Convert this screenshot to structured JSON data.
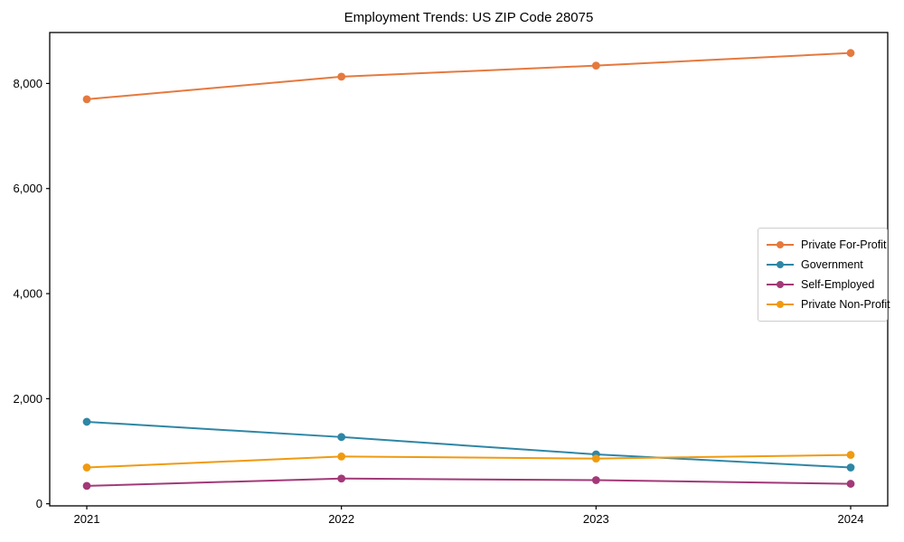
{
  "figure": {
    "background": "#ffffff",
    "axis_color": "#000000"
  },
  "chart_data": {
    "type": "line",
    "title": "Employment Trends: US ZIP Code 28075",
    "categories": [
      "2021",
      "2022",
      "2023",
      "2024"
    ],
    "series": [
      {
        "name": "Private For-Profit",
        "color": "#e5793e",
        "values": [
          7700,
          8130,
          8340,
          8580
        ]
      },
      {
        "name": "Government",
        "color": "#2e86a5",
        "values": [
          1560,
          1270,
          940,
          690
        ]
      },
      {
        "name": "Self-Employed",
        "color": "#a23978",
        "values": [
          340,
          480,
          450,
          380
        ]
      },
      {
        "name": "Private Non-Profit",
        "color": "#f09a10",
        "values": [
          690,
          900,
          860,
          930
        ]
      }
    ],
    "xlabel": "",
    "ylabel": "",
    "ylim": [
      -40,
      8970
    ],
    "yticks": [
      0,
      2000,
      4000,
      6000,
      8000
    ],
    "ytick_labels": [
      "0",
      "2,000",
      "4,000",
      "6,000",
      "8,000"
    ],
    "grid": false,
    "legend_position": "center-right"
  }
}
